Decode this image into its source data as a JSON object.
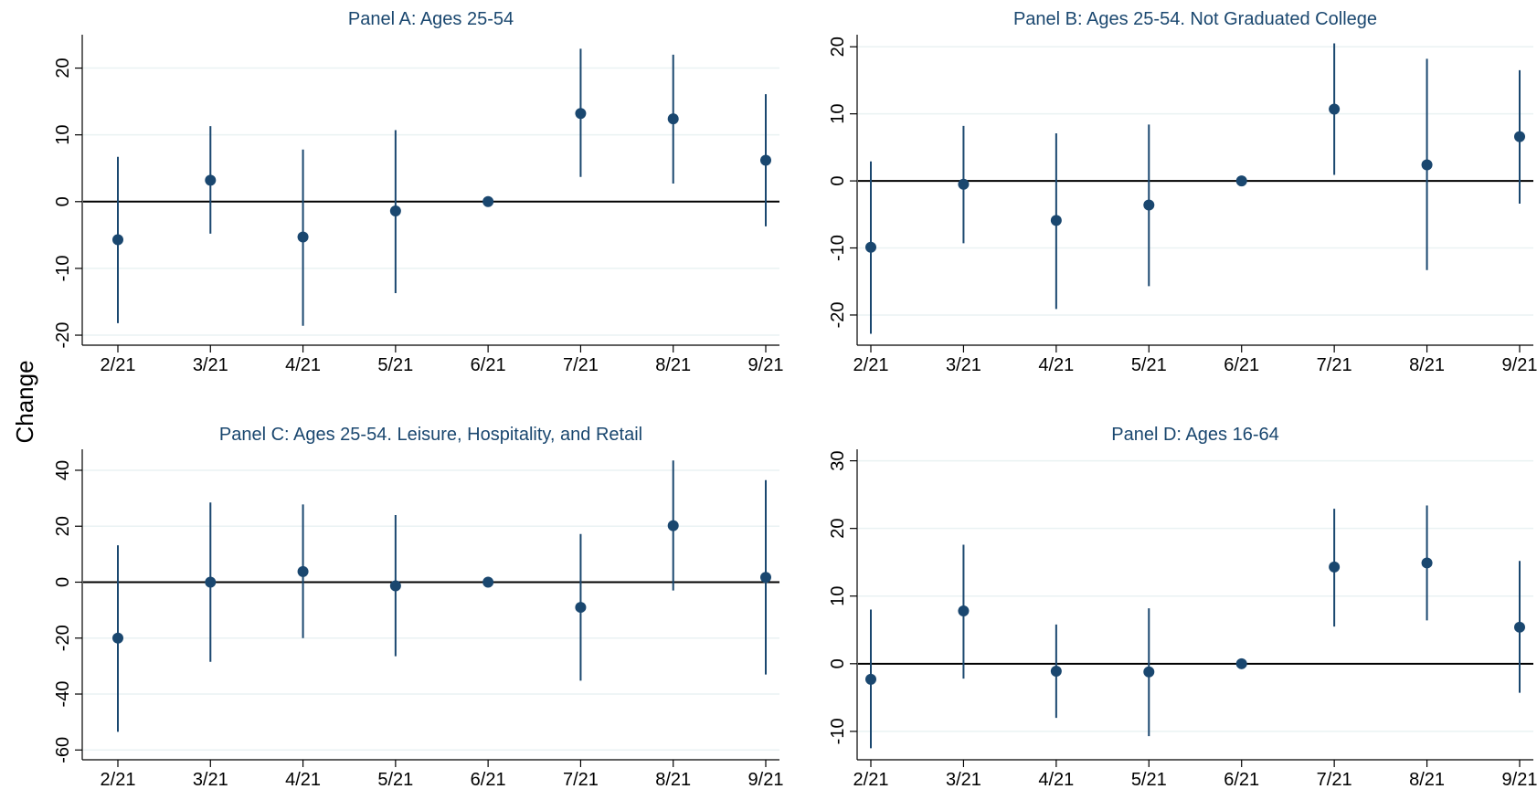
{
  "figure": {
    "ylabel": "Change",
    "colors": {
      "marker": "#1a476f",
      "ci_line": "#1a476f",
      "zero_line": "#000000",
      "grid": "#eaf2f3",
      "title": "#1a476f"
    }
  },
  "chart_data": [
    {
      "type": "scatter",
      "title": "Panel A: Ages 25-54",
      "categories": [
        "2/21",
        "3/21",
        "4/21",
        "5/21",
        "6/21",
        "7/21",
        "8/21",
        "9/21"
      ],
      "point_estimate": [
        -5.7,
        3.2,
        -5.3,
        -1.4,
        0,
        13.2,
        12.4,
        6.2
      ],
      "ci_low": [
        -18.2,
        -4.8,
        -18.6,
        -13.7,
        0,
        3.7,
        2.7,
        -3.7
      ],
      "ci_high": [
        6.7,
        11.3,
        7.8,
        10.7,
        0,
        22.9,
        22.0,
        16.1
      ],
      "yticks": [
        -20,
        -10,
        0,
        10,
        20
      ],
      "ylim": [
        -21.5,
        25
      ],
      "reference_line_y": 0,
      "grid": true
    },
    {
      "type": "scatter",
      "title": "Panel B: Ages 25-54. Not Graduated College",
      "categories": [
        "2/21",
        "3/21",
        "4/21",
        "5/21",
        "6/21",
        "7/21",
        "8/21",
        "9/21"
      ],
      "point_estimate": [
        -9.9,
        -0.5,
        -5.9,
        -3.6,
        0,
        10.7,
        2.4,
        6.6
      ],
      "ci_low": [
        -22.8,
        -9.3,
        -19.1,
        -15.7,
        0,
        0.9,
        -13.3,
        -3.4
      ],
      "ci_high": [
        2.9,
        8.2,
        7.1,
        8.4,
        0,
        20.5,
        18.2,
        16.5
      ],
      "yticks": [
        -20,
        -10,
        0,
        10,
        20
      ],
      "ylim": [
        -24.5,
        21.8
      ],
      "reference_line_y": 0,
      "grid": true
    },
    {
      "type": "scatter",
      "title": "Panel C: Ages 25-54. Leisure, Hospitality, and Retail",
      "categories": [
        "2/21",
        "3/21",
        "4/21",
        "5/21",
        "6/21",
        "7/21",
        "8/21",
        "9/21"
      ],
      "point_estimate": [
        -20,
        0,
        3.8,
        -1.3,
        0,
        -9,
        20.2,
        1.7
      ],
      "ci_low": [
        -53.5,
        -28.5,
        -20,
        -26.5,
        0,
        -35.2,
        -3,
        -33
      ],
      "ci_high": [
        13.2,
        28.5,
        27.8,
        24,
        0,
        17.2,
        43.5,
        36.5
      ],
      "yticks": [
        -60,
        -40,
        -20,
        0,
        20,
        40
      ],
      "ylim": [
        -63.5,
        47.5
      ],
      "reference_line_y": 0,
      "grid": true
    },
    {
      "type": "scatter",
      "title": "Panel D: Ages 16-64",
      "categories": [
        "2/21",
        "3/21",
        "4/21",
        "5/21",
        "6/21",
        "7/21",
        "8/21",
        "9/21"
      ],
      "point_estimate": [
        -2.3,
        7.8,
        -1.1,
        -1.2,
        0,
        14.3,
        14.9,
        5.4
      ],
      "ci_low": [
        -12.5,
        -2.2,
        -8.0,
        -10.7,
        0,
        5.5,
        6.4,
        -4.3
      ],
      "ci_high": [
        8.0,
        17.6,
        5.8,
        8.2,
        0,
        22.9,
        23.4,
        15.2
      ],
      "yticks": [
        -10,
        0,
        10,
        20,
        30
      ],
      "ylim": [
        -14.2,
        31.7
      ],
      "reference_line_y": 0,
      "grid": true
    }
  ]
}
